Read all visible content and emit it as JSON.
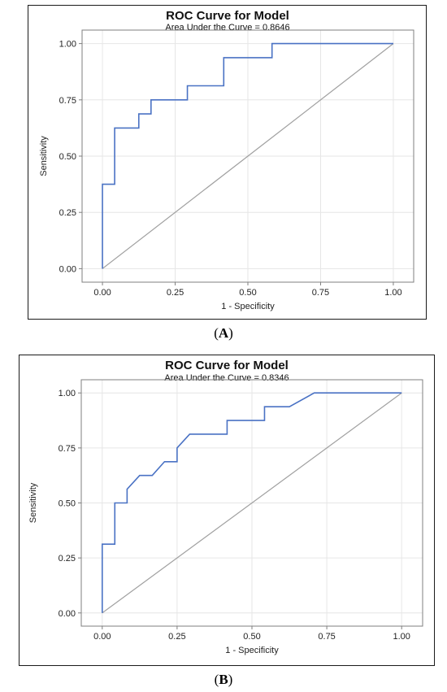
{
  "captions": {
    "a_open": "(",
    "a_letter": "A",
    "a_close": ")",
    "b_open": "(",
    "b_letter": "B",
    "b_close": ")"
  },
  "colors": {
    "curve": "#4a72c4",
    "diagonal": "#a0a0a0",
    "grid": "#e6e6e6",
    "frame": "#7f7f7f"
  },
  "chart_data": [
    {
      "type": "line",
      "title": "ROC Curve for Model",
      "subtitle": "Area Under the Curve = 0.8646",
      "xlabel": "1 - Specificity",
      "ylabel": "Sensitivity",
      "xlim": [
        -0.07,
        1.07
      ],
      "ylim": [
        -0.06,
        1.06
      ],
      "xticks": [
        "0.00",
        "0.25",
        "0.50",
        "0.75",
        "1.00"
      ],
      "yticks": [
        "0.00",
        "0.25",
        "0.50",
        "0.75",
        "1.00"
      ],
      "grid": true,
      "series": [
        {
          "x": [
            0,
            0,
            0.042,
            0.042,
            0.125,
            0.125,
            0.167,
            0.167,
            0.292,
            0.292,
            0.417,
            0.417,
            0.583,
            0.583,
            1.0
          ],
          "y": [
            0,
            0.375,
            0.375,
            0.625,
            0.625,
            0.6875,
            0.6875,
            0.75,
            0.75,
            0.8125,
            0.8125,
            0.9375,
            0.9375,
            1.0,
            1.0
          ]
        },
        {
          "x": [
            0,
            1
          ],
          "y": [
            0,
            1
          ]
        }
      ]
    },
    {
      "type": "line",
      "title": "ROC Curve for Model",
      "subtitle": "Area Under the Curve = 0.8346",
      "xlabel": "1 - Specificity",
      "ylabel": "Sensitivity",
      "xlim": [
        -0.07,
        1.07
      ],
      "ylim": [
        -0.06,
        1.06
      ],
      "xticks": [
        "0.00",
        "0.25",
        "0.50",
        "0.75",
        "1.00"
      ],
      "yticks": [
        "0.00",
        "0.25",
        "0.50",
        "0.75",
        "1.00"
      ],
      "grid": true,
      "series": [
        {
          "x": [
            0,
            0,
            0.042,
            0.042,
            0.083,
            0.083,
            0.125,
            0.167,
            0.208,
            0.25,
            0.25,
            0.292,
            0.417,
            0.417,
            0.542,
            0.542,
            0.625,
            0.708,
            1.0
          ],
          "y": [
            0,
            0.3125,
            0.3125,
            0.5,
            0.5,
            0.5625,
            0.625,
            0.625,
            0.6875,
            0.6875,
            0.75,
            0.8125,
            0.8125,
            0.875,
            0.875,
            0.9375,
            0.9375,
            1.0,
            1.0
          ]
        },
        {
          "x": [
            0,
            1
          ],
          "y": [
            0,
            1
          ]
        }
      ]
    }
  ]
}
